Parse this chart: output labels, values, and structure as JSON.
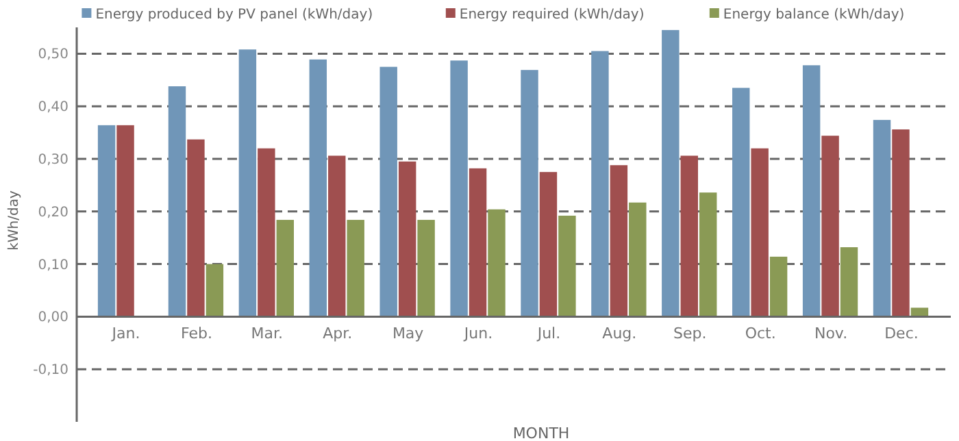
{
  "chart_data": {
    "type": "bar",
    "xlabel": "MONTH",
    "ylabel": "kWh/day",
    "categories": [
      "Jan.",
      "Feb.",
      "Mar.",
      "Apr.",
      "May",
      "Jun.",
      "Jul.",
      "Aug.",
      "Sep.",
      "Oct.",
      "Nov.",
      "Dec."
    ],
    "series": [
      {
        "name": "Energy produced by PV panel (kWh/day)",
        "color": "#7096b8",
        "values": [
          0.364,
          0.438,
          0.508,
          0.489,
          0.475,
          0.487,
          0.469,
          0.505,
          0.545,
          0.435,
          0.478,
          0.374
        ]
      },
      {
        "name": "Energy required (kWh/day)",
        "color": "#a04f4f",
        "values": [
          0.364,
          0.337,
          0.32,
          0.306,
          0.295,
          0.282,
          0.275,
          0.288,
          0.306,
          0.32,
          0.344,
          0.356
        ]
      },
      {
        "name": "Energy balance (kWh/day)",
        "color": "#8a9a55",
        "values": [
          0,
          0.1,
          0.184,
          0.184,
          0.184,
          0.204,
          0.192,
          0.217,
          0.236,
          0.114,
          0.132,
          0.017
        ]
      }
    ],
    "ylim": [
      -0.2,
      0.55
    ],
    "yticks": [
      {
        "value": -0.1,
        "label": "-0,10"
      },
      {
        "value": 0,
        "label": "0,00"
      },
      {
        "value": 0.1,
        "label": "0,10"
      },
      {
        "value": 0.2,
        "label": "0,20"
      },
      {
        "value": 0.3,
        "label": "0,30"
      },
      {
        "value": 0.4,
        "label": "0,40"
      },
      {
        "value": 0.5,
        "label": "0,50"
      }
    ],
    "grid": "y",
    "legend": "top"
  }
}
